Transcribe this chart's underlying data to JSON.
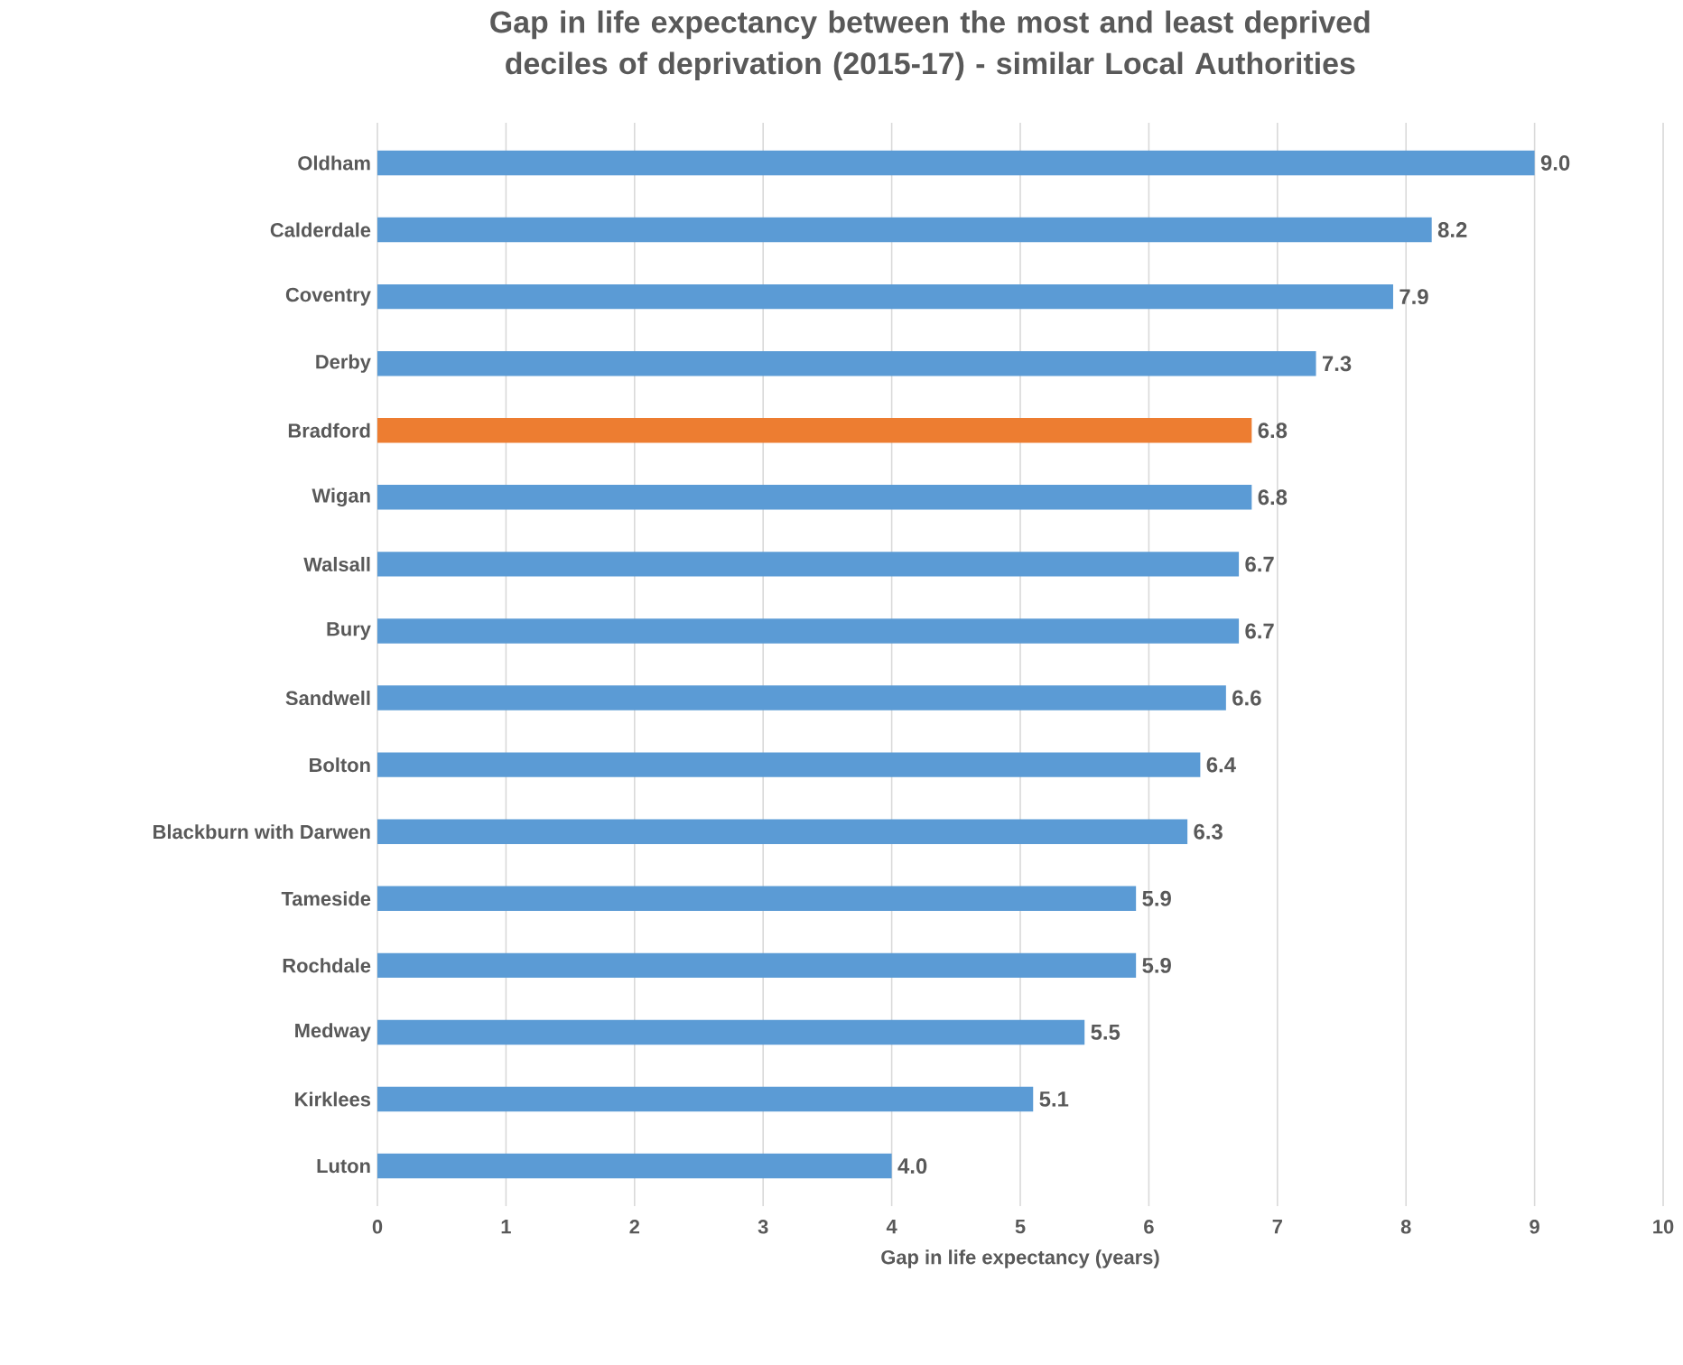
{
  "chart_data": {
    "type": "bar",
    "orientation": "horizontal",
    "title": "Gap in life expectancy between the most and least deprived deciles of deprivation (2015-17) - similar Local Authorities",
    "xlabel": "Gap in life expectancy (years)",
    "categories": [
      "Oldham",
      "Calderdale",
      "Coventry",
      "Derby",
      "Bradford",
      "Wigan",
      "Walsall",
      "Bury",
      "Sandwell",
      "Bolton",
      "Blackburn with Darwen",
      "Tameside",
      "Rochdale",
      "Medway",
      "Kirklees",
      "Luton"
    ],
    "values": [
      9.0,
      8.2,
      7.9,
      7.3,
      6.8,
      6.8,
      6.7,
      6.7,
      6.6,
      6.4,
      6.3,
      5.9,
      5.9,
      5.5,
      5.1,
      4.0
    ],
    "colors": [
      "#5b9bd5",
      "#5b9bd5",
      "#5b9bd5",
      "#5b9bd5",
      "#ed7d31",
      "#5b9bd5",
      "#5b9bd5",
      "#5b9bd5",
      "#5b9bd5",
      "#5b9bd5",
      "#5b9bd5",
      "#5b9bd5",
      "#5b9bd5",
      "#5b9bd5",
      "#5b9bd5",
      "#5b9bd5"
    ],
    "value_labels": [
      "9.0",
      "8.2",
      "7.9",
      "7.3",
      "6.8",
      "6.8",
      "6.7",
      "6.7",
      "6.6",
      "6.4",
      "6.3",
      "5.9",
      "5.9",
      "5.5",
      "5.1",
      "4.0"
    ],
    "xlim": [
      0,
      10
    ],
    "xticks": [
      0,
      1,
      2,
      3,
      4,
      5,
      6,
      7,
      8,
      9,
      10
    ],
    "grid": "x"
  }
}
